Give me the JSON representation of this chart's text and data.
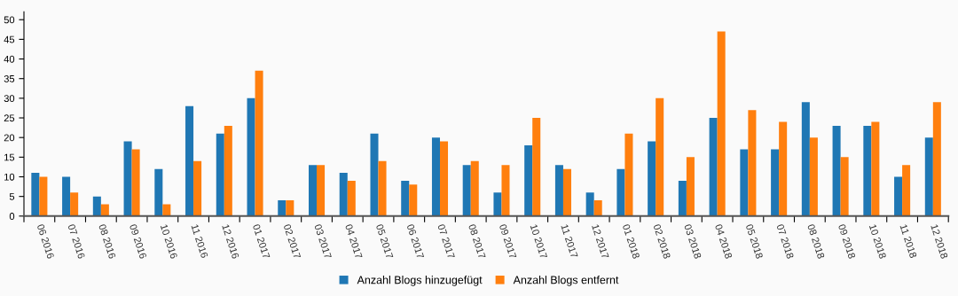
{
  "chart_data": {
    "type": "bar",
    "categories": [
      "06 2016",
      "07 2016",
      "08 2016",
      "09 2016",
      "10 2016",
      "11 2016",
      "12 2016",
      "01 2017",
      "02 2017",
      "03 2017",
      "04 2017",
      "05 2017",
      "06 2017",
      "07 2017",
      "08 2017",
      "09 2017",
      "10 2017",
      "11 2017",
      "12 2017",
      "01 2018",
      "02 2018",
      "03 2018",
      "04 2018",
      "05 2018",
      "07 2018",
      "08 2018",
      "09 2018",
      "10 2018",
      "11 2018",
      "12 2018"
    ],
    "series": [
      {
        "name": "Anzahl Blogs hinzugefügt",
        "color": "#1f77b4",
        "values": [
          11,
          10,
          5,
          19,
          12,
          28,
          21,
          30,
          4,
          13,
          11,
          21,
          9,
          20,
          13,
          6,
          18,
          13,
          6,
          12,
          19,
          9,
          25,
          17,
          17,
          29,
          23,
          23,
          10,
          20
        ]
      },
      {
        "name": "Anzahl Blogs entfernt",
        "color": "#ff7f0e",
        "values": [
          10,
          6,
          3,
          17,
          3,
          14,
          23,
          37,
          4,
          13,
          9,
          14,
          8,
          19,
          14,
          13,
          25,
          12,
          4,
          21,
          30,
          15,
          47,
          27,
          24,
          20,
          15,
          24,
          13,
          29
        ]
      }
    ],
    "ylim": [
      0,
      52
    ],
    "yticks": [
      0,
      5,
      10,
      15,
      20,
      25,
      30,
      35,
      40,
      45,
      50
    ],
    "grid": false,
    "legend": "bottom"
  }
}
